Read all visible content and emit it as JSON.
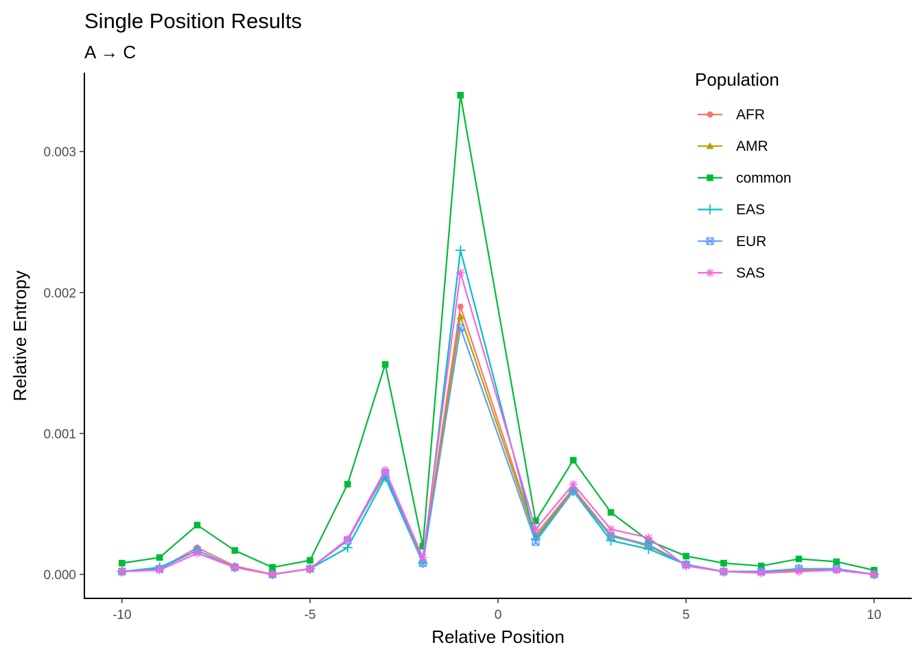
{
  "chart_data": {
    "type": "line",
    "title": "Single Position Results",
    "subtitle": "A → C",
    "xlabel": "Relative Position",
    "ylabel": "Relative Entropy",
    "xlim": [
      -11,
      11
    ],
    "ylim": [
      -0.00017,
      0.00356
    ],
    "x_ticks": [
      -10,
      -5,
      0,
      5,
      10
    ],
    "x_tick_labels": [
      "-10",
      "-5",
      "0",
      "5",
      "10"
    ],
    "y_ticks": [
      0,
      0.001,
      0.002,
      0.003
    ],
    "y_tick_labels": [
      "0.000",
      "0.001",
      "0.002",
      "0.003"
    ],
    "grid": false,
    "legend_title": "Population",
    "legend_position": "top-right",
    "x": [
      -10,
      -9,
      -8,
      -7,
      -6,
      -5,
      -4,
      -3,
      -2,
      -1,
      1,
      2,
      3,
      4,
      5,
      6,
      7,
      8,
      9,
      10
    ],
    "series": [
      {
        "name": "AFR",
        "color": "#F8766D",
        "marker": "circle",
        "values": [
          2e-05,
          4e-05,
          0.00019,
          6e-05,
          0.0,
          4e-05,
          0.00025,
          0.00072,
          0.0001,
          0.0019,
          0.00028,
          0.00061,
          0.00028,
          0.00021,
          7e-05,
          2e-05,
          2e-05,
          3e-05,
          3e-05,
          0.0
        ]
      },
      {
        "name": "AMR",
        "color": "#B79F00",
        "marker": "triangle",
        "values": [
          2e-05,
          4e-05,
          0.00017,
          5e-05,
          0.0,
          4e-05,
          0.00025,
          0.00071,
          0.0001,
          0.00183,
          0.00026,
          0.0006,
          0.00028,
          0.0002,
          7e-05,
          2e-05,
          2e-05,
          3e-05,
          3e-05,
          0.0
        ]
      },
      {
        "name": "common",
        "color": "#00BA38",
        "marker": "square",
        "values": [
          8e-05,
          0.00012,
          0.00035,
          0.00017,
          5e-05,
          0.0001,
          0.00064,
          0.00149,
          0.0002,
          0.0034,
          0.00038,
          0.00081,
          0.00044,
          0.00024,
          0.00013,
          8e-05,
          6e-05,
          0.00011,
          9e-05,
          3e-05
        ]
      },
      {
        "name": "EAS",
        "color": "#00BFC4",
        "marker": "plus",
        "values": [
          2e-05,
          5e-05,
          0.00017,
          5e-05,
          0.0,
          4e-05,
          0.00019,
          0.00069,
          8e-05,
          0.0023,
          0.00025,
          0.00059,
          0.00024,
          0.00018,
          7e-05,
          2e-05,
          2e-05,
          4e-05,
          4e-05,
          0.0
        ]
      },
      {
        "name": "EUR",
        "color": "#619CFF",
        "marker": "boxx",
        "values": [
          2e-05,
          4e-05,
          0.00017,
          5e-05,
          0.0,
          4e-05,
          0.00024,
          0.00072,
          8e-05,
          0.00175,
          0.00023,
          0.00059,
          0.00027,
          0.00021,
          7e-05,
          2e-05,
          2e-05,
          4e-05,
          4e-05,
          0.0
        ]
      },
      {
        "name": "SAS",
        "color": "#F564E3",
        "marker": "asterisk",
        "values": [
          2e-05,
          3e-05,
          0.00015,
          5e-05,
          0.0,
          4e-05,
          0.00025,
          0.00074,
          0.00012,
          0.00214,
          0.00032,
          0.00064,
          0.00032,
          0.00026,
          6e-05,
          2e-05,
          1e-05,
          2e-05,
          3e-05,
          0.0
        ]
      }
    ]
  }
}
